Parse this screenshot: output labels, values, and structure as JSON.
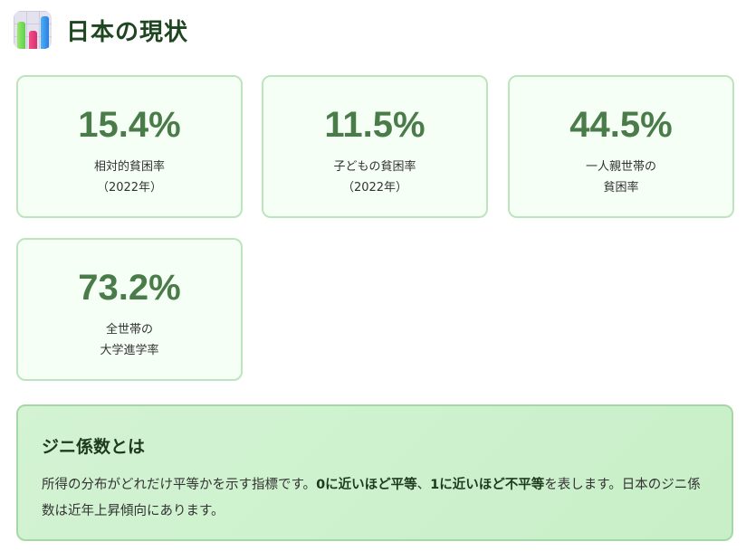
{
  "header": {
    "title": "日本の現状",
    "icon": "bar-chart-icon"
  },
  "stats": [
    {
      "value": "15.4%",
      "label_line1": "相対的貧困率",
      "label_line2": "（2022年）"
    },
    {
      "value": "11.5%",
      "label_line1": "子どもの貧困率",
      "label_line2": "（2022年）"
    },
    {
      "value": "44.5%",
      "label_line1": "一人親世帯の",
      "label_line2": "貧困率"
    },
    {
      "value": "73.2%",
      "label_line1": "全世帯の",
      "label_line2": "大学進学率"
    }
  ],
  "info": {
    "title": "ジニ係数とは",
    "text_1": "所得の分布がどれだけ平等かを示す指標です。",
    "bold_1": "0に近いほど平等",
    "text_2": "、",
    "bold_2": "1に近いほど不平等",
    "text_3": "を表します。日本のジニ係数は近年上昇傾向にあります。"
  }
}
